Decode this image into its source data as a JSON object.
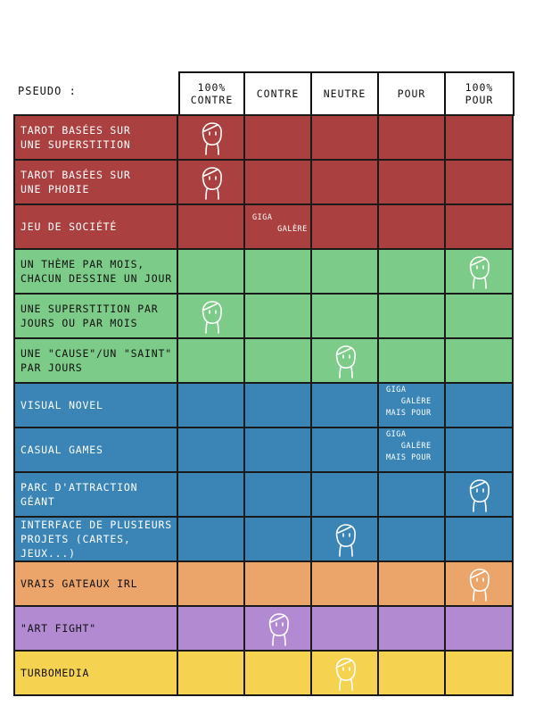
{
  "header": {
    "pseudo_label": "PSEUDO :",
    "columns": [
      "100%\nCONTRE",
      "CONTRE",
      "NEUTRE",
      "POUR",
      "100%\nPOUR"
    ]
  },
  "colors": {
    "red": "#aa4040",
    "green": "#7ccb88",
    "blue": "#3a85b5",
    "orange": "#eba46a",
    "purple": "#b18ad2",
    "yellow": "#f5d24f"
  },
  "rows": [
    {
      "label": "TAROT BASÉES SUR\nUNE SUPERSTITION",
      "color": "red",
      "mark_col": 0
    },
    {
      "label": "TAROT BASÉES SUR\nUNE PHOBIE",
      "color": "red",
      "mark_col": 0
    },
    {
      "label": "JEU DE SOCIÉTÉ",
      "color": "red",
      "note_col": 1,
      "note": "GIGA\n     GALÈRE"
    },
    {
      "label": "UN THÈME PAR MOIS,\nCHACUN DESSINE UN JOUR",
      "color": "green",
      "mark_col": 4
    },
    {
      "label": "UNE SUPERSTITION PAR\nJOURS OU PAR MOIS",
      "color": "green",
      "mark_col": 0
    },
    {
      "label": "UNE \"CAUSE\"/UN \"SAINT\"\nPAR JOURS",
      "color": "green",
      "mark_col": 2
    },
    {
      "label": "VISUAL NOVEL",
      "color": "blue",
      "note_col": 3,
      "note": "GIGA\n   GALÈRE\nMAIS POUR"
    },
    {
      "label": "CASUAL GAMES",
      "color": "blue",
      "note_col": 3,
      "note": "GIGA\n   GALÈRE\nMAIS POUR"
    },
    {
      "label": "PARC D'ATTRACTION\nGÉANT",
      "color": "blue",
      "mark_col": 4
    },
    {
      "label": "INTERFACE DE PLUSIEURS\nPROJETS (CARTES, JEUX...)",
      "color": "blue",
      "mark_col": 2
    },
    {
      "label": "VRAIS GATEAUX IRL",
      "color": "orange",
      "mark_col": 4
    },
    {
      "label": "\"ART FIGHT\"",
      "color": "purple",
      "mark_col": 1
    },
    {
      "label": "TURBOMEDIA",
      "color": "yellow",
      "mark_col": 2
    }
  ],
  "face_icon": "doodle-face-icon"
}
